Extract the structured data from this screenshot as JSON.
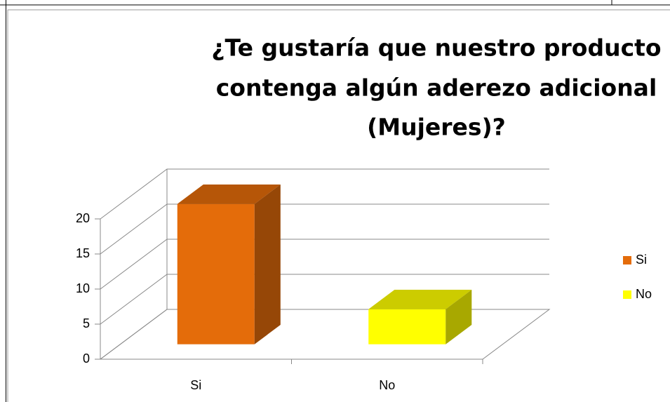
{
  "chart_data": {
    "type": "bar3d",
    "title": [
      "¿Te gustaría que nuestro producto",
      "contenga algún aderezo adicional",
      "(Mujeres)?"
    ],
    "categories": [
      "Si",
      "No"
    ],
    "values": [
      20,
      5
    ],
    "colors": [
      "#e46c0a",
      "#ffff00"
    ],
    "ylim": [
      0,
      20
    ],
    "yticks": [
      0,
      5,
      10,
      15,
      20
    ],
    "grid": true,
    "legend": "right"
  }
}
